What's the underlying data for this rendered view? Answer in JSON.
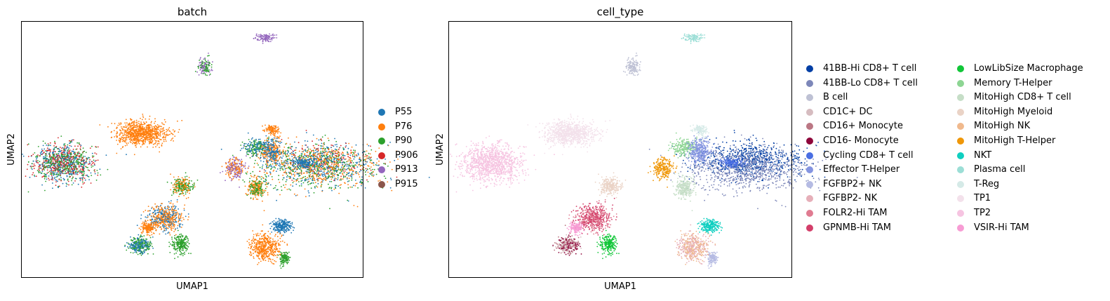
{
  "chart_data": [
    {
      "type": "scatter",
      "title": "batch",
      "xlabel": "UMAP1",
      "ylabel": "UMAP2",
      "grid": false,
      "legend_position": "right",
      "series": [
        {
          "name": "P55",
          "color": "#1f77b4"
        },
        {
          "name": "P76",
          "color": "#ff7f0e"
        },
        {
          "name": "P90",
          "color": "#2ca02c"
        },
        {
          "name": "P906",
          "color": "#d62728"
        },
        {
          "name": "P913",
          "color": "#9467bd"
        },
        {
          "name": "P915",
          "color": "#8c564b"
        }
      ]
    },
    {
      "type": "scatter",
      "title": "cell_type",
      "xlabel": "UMAP1",
      "ylabel": "UMAP2",
      "grid": false,
      "legend_position": "right",
      "series": [
        {
          "name": "41BB-Hi CD8+ T cell",
          "color": "#023fa5"
        },
        {
          "name": "41BB-Lo CD8+ T cell",
          "color": "#7d87b9"
        },
        {
          "name": "B cell",
          "color": "#bec1d4"
        },
        {
          "name": "CD1C+ DC",
          "color": "#d6bcc0"
        },
        {
          "name": "CD16+ Monocyte",
          "color": "#bb7784"
        },
        {
          "name": "CD16- Monocyte",
          "color": "#8e063b"
        },
        {
          "name": "Cycling CD8+ T cell",
          "color": "#4a6fe3"
        },
        {
          "name": "Effector T-Helper",
          "color": "#8595e1"
        },
        {
          "name": "FGFBP2+ NK",
          "color": "#b5bbe3"
        },
        {
          "name": "FGFBP2- NK",
          "color": "#e6afb9"
        },
        {
          "name": "FOLR2-Hi TAM",
          "color": "#e07b91"
        },
        {
          "name": "GPNMB-Hi TAM",
          "color": "#d33f6a"
        },
        {
          "name": "LowLibSize Macrophage",
          "color": "#11c638"
        },
        {
          "name": "Memory T-Helper",
          "color": "#8dd593"
        },
        {
          "name": "MitoHigh CD8+ T cell",
          "color": "#c6dec7"
        },
        {
          "name": "MitoHigh Myeloid",
          "color": "#ead3c6"
        },
        {
          "name": "MitoHigh NK",
          "color": "#f0b98d"
        },
        {
          "name": "MitoHigh T-Helper",
          "color": "#ef9708"
        },
        {
          "name": "NKT",
          "color": "#0fcfc0"
        },
        {
          "name": "Plasma cell",
          "color": "#9cded6"
        },
        {
          "name": "T-Reg",
          "color": "#d5eae7"
        },
        {
          "name": "TP1",
          "color": "#f3e1eb"
        },
        {
          "name": "TP2",
          "color": "#f6c4e1"
        },
        {
          "name": "VSIR-Hi TAM",
          "color": "#f79cd4"
        }
      ]
    }
  ]
}
